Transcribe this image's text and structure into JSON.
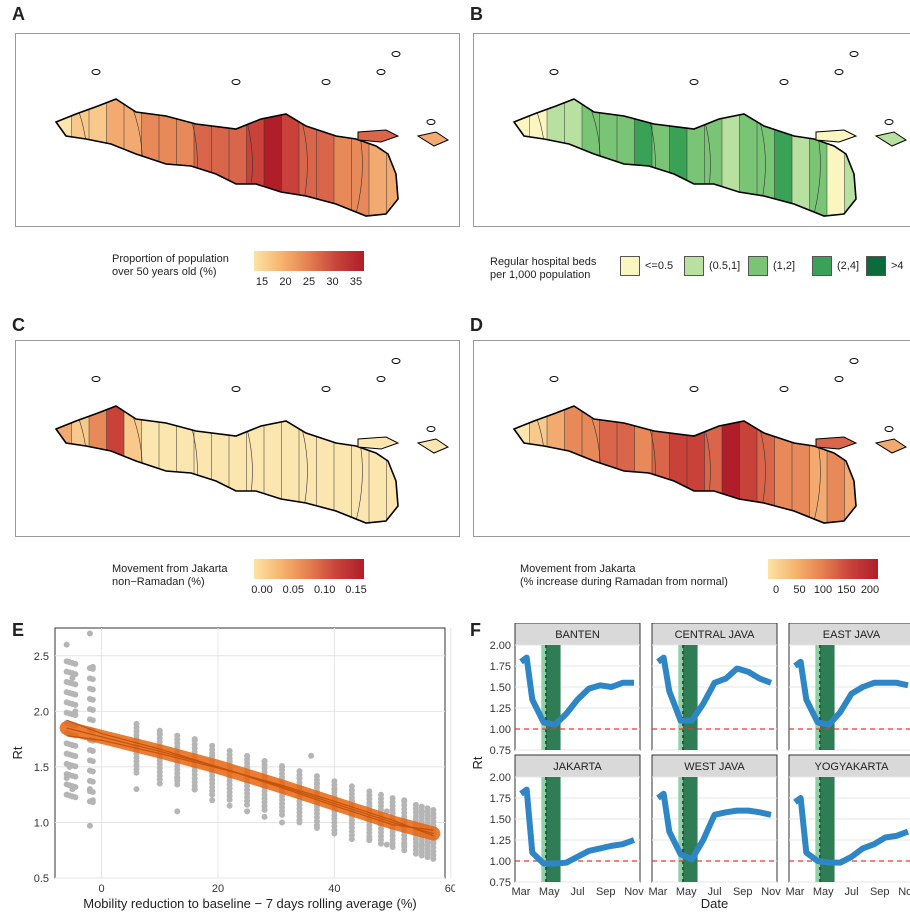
{
  "panels": {
    "a": {
      "letter": "A",
      "legend_title": "Proportion of population\nover 50 years old (%)",
      "ticks": [
        "15",
        "20",
        "25",
        "30",
        "35"
      ],
      "colors": [
        "#fbe3a6",
        "#f6b46e",
        "#e57f4f",
        "#c9423a",
        "#b01e2a"
      ]
    },
    "b": {
      "letter": "B",
      "legend_title": "Regular hospital beds\nper 1,000 population",
      "categories": [
        {
          "label": "<=0.5",
          "color": "#fbf6c0"
        },
        {
          "label": "(0.5,1]",
          "color": "#b8e0a0"
        },
        {
          "label": "(1,2]",
          "color": "#79c475"
        },
        {
          "label": "(2,4]",
          "color": "#3aa257"
        },
        {
          "label": ">4",
          "color": "#0b6b3a"
        }
      ]
    },
    "c": {
      "letter": "C",
      "legend_title": "Movement from Jakarta\nnon−Ramadan (%)",
      "ticks": [
        "0.00",
        "0.05",
        "0.10",
        "0.15"
      ],
      "colors": [
        "#fbe3a6",
        "#f6b46e",
        "#e57f4f",
        "#c9423a",
        "#b01e2a"
      ]
    },
    "d": {
      "letter": "D",
      "legend_title": "Movement from Jakarta\n(% increase during Ramadan from normal)",
      "ticks": [
        "0",
        "50",
        "100",
        "150",
        "200"
      ],
      "colors": [
        "#fbe3a6",
        "#f6b46e",
        "#e57f4f",
        "#c9423a",
        "#b01e2a"
      ]
    },
    "e": {
      "letter": "E"
    },
    "f": {
      "letter": "F"
    }
  },
  "chart_data": [
    {
      "type": "scatter",
      "panel": "E",
      "xlabel": "Mobility reduction to baseline − 7 days rolling average (%)",
      "ylabel": "Rt",
      "xlim": [
        -8,
        59
      ],
      "ylim": [
        0.5,
        2.75
      ],
      "xticks": [
        0,
        20,
        40,
        60
      ],
      "yticks": [
        0.5,
        1.0,
        1.5,
        2.0,
        2.5
      ],
      "yticklabels": [
        "0.5",
        "1.0",
        "1.5",
        "2.0",
        "2.5"
      ],
      "grid": true,
      "point_color": "#b5b5b5",
      "fit_color": "#e8650f",
      "points": [
        [
          -6,
          1.4
        ],
        [
          -6,
          2.6
        ],
        [
          -5.5,
          1.5
        ],
        [
          -5,
          2.3
        ],
        [
          -5,
          1.3
        ],
        [
          -4.5,
          2.0
        ],
        [
          -2,
          2.7
        ],
        [
          -2,
          1.3
        ],
        [
          -1.5,
          2.4
        ],
        [
          -1.5,
          1.2
        ],
        [
          -2,
          0.97
        ],
        [
          6,
          1.7
        ],
        [
          6,
          1.3
        ],
        [
          10,
          1.8
        ],
        [
          10,
          1.35
        ],
        [
          13,
          1.4
        ],
        [
          13,
          1.1
        ],
        [
          16,
          1.75
        ],
        [
          16,
          1.3
        ],
        [
          19,
          1.6
        ],
        [
          19,
          1.2
        ],
        [
          22,
          1.55
        ],
        [
          22,
          1.15
        ],
        [
          25,
          1.5
        ],
        [
          25,
          1.1
        ],
        [
          28,
          1.55
        ],
        [
          28,
          1.05
        ],
        [
          31,
          1.5
        ],
        [
          31,
          1.0
        ],
        [
          34,
          1.4
        ],
        [
          34,
          1.0
        ],
        [
          36,
          1.6
        ],
        [
          37,
          1.35
        ],
        [
          37,
          0.95
        ],
        [
          40,
          1.3
        ],
        [
          40,
          0.9
        ],
        [
          43,
          1.2
        ],
        [
          43,
          0.85
        ],
        [
          46,
          1.15
        ],
        [
          46,
          0.85
        ],
        [
          49,
          1.1
        ],
        [
          49,
          0.8
        ],
        [
          52,
          1.2
        ],
        [
          52,
          0.8
        ],
        [
          55,
          1.1
        ],
        [
          55,
          0.8
        ],
        [
          57,
          1.05
        ],
        [
          57,
          0.82
        ]
      ],
      "fit_lines": [
        {
          "x": [
            -6,
            0,
            10,
            20,
            30,
            40,
            50,
            57
          ],
          "y": [
            1.85,
            1.77,
            1.64,
            1.5,
            1.34,
            1.17,
            1.0,
            0.9
          ]
        },
        {
          "x": [
            -6,
            0,
            10,
            20,
            30,
            40,
            50,
            57
          ],
          "y": [
            1.92,
            1.8,
            1.66,
            1.5,
            1.33,
            1.15,
            0.98,
            0.93
          ]
        },
        {
          "x": [
            -6,
            0,
            10,
            20,
            30,
            40,
            50,
            57
          ],
          "y": [
            1.78,
            1.74,
            1.62,
            1.49,
            1.35,
            1.19,
            1.02,
            0.88
          ]
        }
      ]
    },
    {
      "type": "line",
      "panel": "F",
      "xlabel": "Date",
      "ylabel": "Rt",
      "xticks": [
        "Mar",
        "May",
        "Jul",
        "Sep",
        "Nov"
      ],
      "ylim": [
        0.75,
        2.0
      ],
      "yticks": [
        "0.75",
        "1.00",
        "1.25",
        "1.50",
        "1.75",
        "2.00"
      ],
      "reference_y": 1.0,
      "line_color": "#2f86c6",
      "ramadan_band_color": "#2e7d55",
      "light_band_color": "#8fd0a6",
      "grid": true,
      "series": [
        {
          "name": "BANTEN",
          "x": [
            0,
            0.05,
            0.1,
            0.2,
            0.3,
            0.4,
            0.5,
            0.6,
            0.7,
            0.8,
            0.9,
            1.0
          ],
          "values": [
            1.8,
            1.85,
            1.35,
            1.08,
            1.05,
            1.18,
            1.35,
            1.48,
            1.52,
            1.5,
            1.55,
            1.55
          ]
        },
        {
          "name": "CENTRAL JAVA",
          "x": [
            0,
            0.05,
            0.1,
            0.2,
            0.3,
            0.4,
            0.5,
            0.6,
            0.7,
            0.8,
            0.9,
            1.0
          ],
          "values": [
            1.8,
            1.85,
            1.45,
            1.1,
            1.1,
            1.3,
            1.55,
            1.6,
            1.72,
            1.68,
            1.6,
            1.55
          ]
        },
        {
          "name": "EAST JAVA",
          "x": [
            0,
            0.05,
            0.1,
            0.2,
            0.3,
            0.4,
            0.5,
            0.6,
            0.7,
            0.8,
            0.9,
            1.0
          ],
          "values": [
            1.75,
            1.8,
            1.35,
            1.08,
            1.05,
            1.2,
            1.42,
            1.5,
            1.55,
            1.55,
            1.55,
            1.52
          ]
        },
        {
          "name": "JAKARTA",
          "x": [
            0,
            0.05,
            0.1,
            0.2,
            0.3,
            0.4,
            0.5,
            0.6,
            0.7,
            0.8,
            0.9,
            1.0
          ],
          "values": [
            1.8,
            1.85,
            1.1,
            0.97,
            0.97,
            0.98,
            1.05,
            1.12,
            1.15,
            1.18,
            1.2,
            1.25
          ]
        },
        {
          "name": "WEST JAVA",
          "x": [
            0,
            0.05,
            0.1,
            0.2,
            0.3,
            0.4,
            0.5,
            0.6,
            0.7,
            0.8,
            0.9,
            1.0
          ],
          "values": [
            1.75,
            1.8,
            1.35,
            1.08,
            1.02,
            1.25,
            1.55,
            1.58,
            1.6,
            1.6,
            1.58,
            1.55
          ]
        },
        {
          "name": "YOGYAKARTA",
          "x": [
            0,
            0.05,
            0.1,
            0.2,
            0.3,
            0.4,
            0.5,
            0.6,
            0.7,
            0.8,
            0.9,
            1.0
          ],
          "values": [
            1.7,
            1.75,
            1.1,
            1.0,
            0.98,
            0.98,
            1.05,
            1.15,
            1.2,
            1.28,
            1.3,
            1.35
          ]
        }
      ]
    }
  ]
}
